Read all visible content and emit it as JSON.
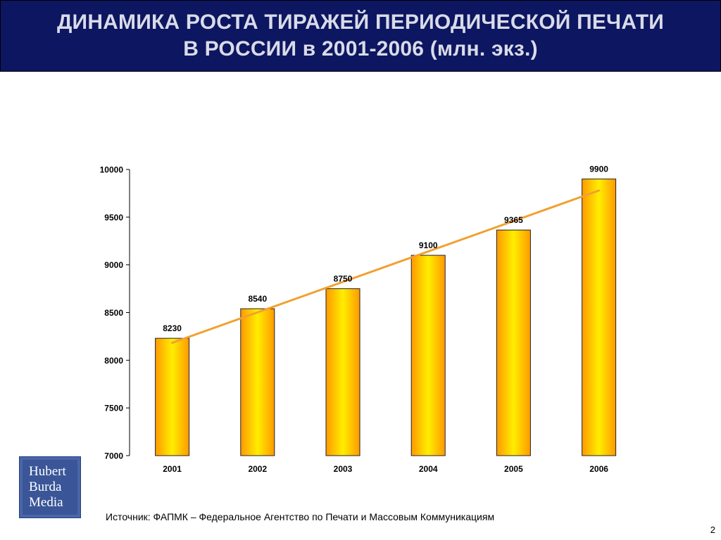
{
  "header": {
    "title_line1": "ДИНАМИКА РОСТА ТИРАЖЕЙ ПЕРИОДИЧЕСКОЙ ПЕЧАТИ",
    "title_line2": "В РОССИИ в 2001-2006 (млн. экз.)"
  },
  "chart_data": {
    "type": "bar",
    "categories": [
      "2001",
      "2002",
      "2003",
      "2004",
      "2005",
      "2006"
    ],
    "values": [
      8230,
      8540,
      8750,
      9100,
      9365,
      9900
    ],
    "data_labels": [
      "8230",
      "8540",
      "8750",
      "9100",
      "9365",
      "9900"
    ],
    "ylim": [
      7000,
      10000
    ],
    "yticks": [
      7000,
      7500,
      8000,
      8500,
      9000,
      9500,
      10000
    ],
    "trendline": true,
    "colors": {
      "bar_outer": "#ff9900",
      "bar_center": "#ffee00",
      "bar_border": "#222222",
      "trendline": "#f2a030"
    }
  },
  "logo": {
    "line1": "Hubert",
    "line2": "Burda",
    "line3": "Media"
  },
  "footer": {
    "source": "Источник: ФАПМК – Федеральное Агентство по Печати и Массовым Коммуникациям",
    "page_number": "2"
  },
  "colors": {
    "header_bg": "#0d1660",
    "header_text": "#d9dbe8"
  }
}
